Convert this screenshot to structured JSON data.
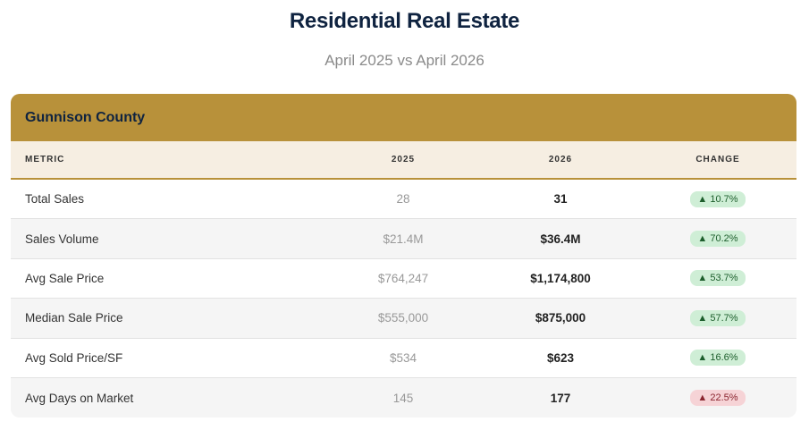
{
  "header": {
    "title": "Residential Real Estate",
    "subtitle": "April 2025 vs April 2026"
  },
  "card": {
    "title": "Gunnison County",
    "columns": {
      "metric": "METRIC",
      "y2025": "2025",
      "y2026": "2026",
      "change": "CHANGE"
    },
    "rows": [
      {
        "metric": "Total Sales",
        "y2025": "28",
        "y2026": "31",
        "change": "▲ 10.7%",
        "trend": "up"
      },
      {
        "metric": "Sales Volume",
        "y2025": "$21.4M",
        "y2026": "$36.4M",
        "change": "▲ 70.2%",
        "trend": "up"
      },
      {
        "metric": "Avg Sale Price",
        "y2025": "$764,247",
        "y2026": "$1,174,800",
        "change": "▲ 53.7%",
        "trend": "up"
      },
      {
        "metric": "Median Sale Price",
        "y2025": "$555,000",
        "y2026": "$875,000",
        "change": "▲ 57.7%",
        "trend": "up"
      },
      {
        "metric": "Avg Sold Price/SF",
        "y2025": "$534",
        "y2026": "$623",
        "change": "▲ 16.6%",
        "trend": "up"
      },
      {
        "metric": "Avg Days on Market",
        "y2025": "145",
        "y2026": "177",
        "change": "▲ 22.5%",
        "trend": "down"
      }
    ]
  },
  "colors": {
    "accent": "#b8913a",
    "title": "#0f2340",
    "positive": "#cfeed6",
    "negative": "#f6d3d6"
  }
}
